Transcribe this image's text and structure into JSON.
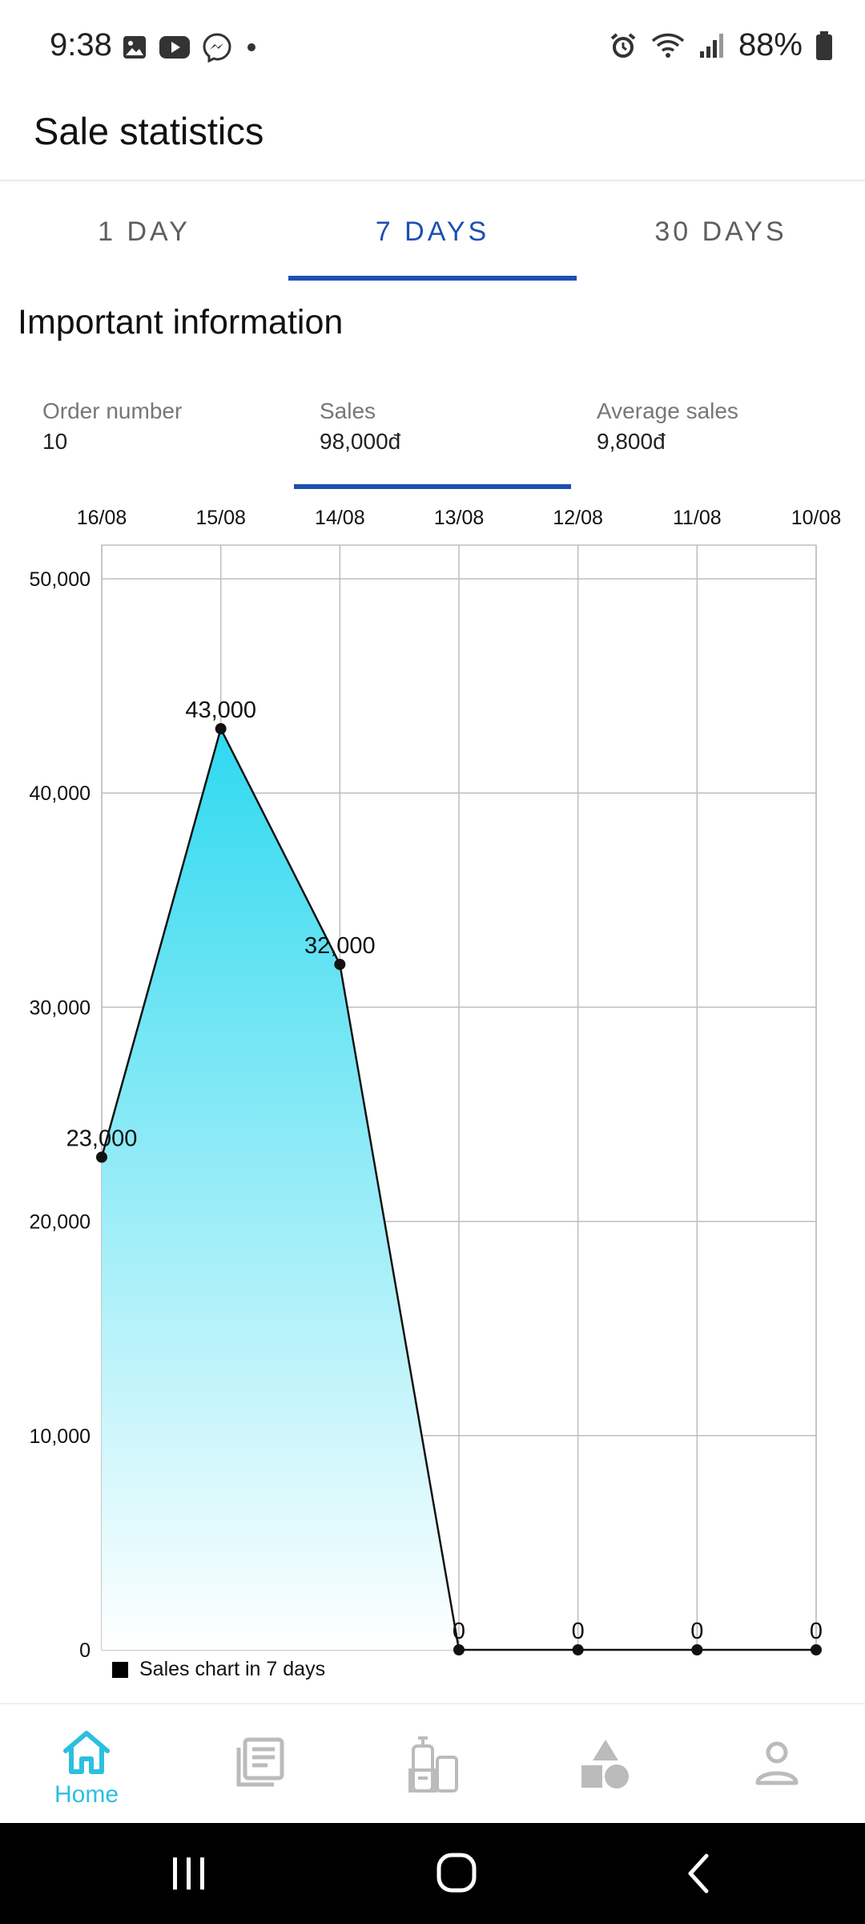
{
  "status_bar": {
    "time": "9:38",
    "battery": "88%",
    "icons": [
      "gallery-icon",
      "youtube-icon",
      "messenger-icon",
      "dot-icon",
      "alarm-icon",
      "wifi-icon",
      "signal-icon",
      "battery-icon"
    ]
  },
  "header": {
    "title": "Sale statistics"
  },
  "period_tabs": [
    {
      "label": "1 DAY",
      "active": false
    },
    {
      "label": "7 DAYS",
      "active": true
    },
    {
      "label": "30 DAYS",
      "active": false
    }
  ],
  "section_title": "Important information",
  "info_tabs": [
    {
      "label": "Order number",
      "value": "10",
      "active": false
    },
    {
      "label": "Sales",
      "value": "98,000đ",
      "active": true
    },
    {
      "label": "Average sales",
      "value": "9,800đ",
      "active": false
    }
  ],
  "colors": {
    "accent": "#1e4fb1",
    "chart_fill_top": "#2fd9ef",
    "nav_active": "#2bbfe0"
  },
  "chart_data": {
    "type": "area",
    "categories": [
      "16/08",
      "15/08",
      "14/08",
      "13/08",
      "12/08",
      "11/08",
      "10/08"
    ],
    "values": [
      23000,
      43000,
      32000,
      0,
      0,
      0,
      0
    ],
    "data_labels": [
      "23,000",
      "43,000",
      "32,000",
      "0",
      "0",
      "0",
      "0"
    ],
    "y_ticks": [
      0,
      10000,
      20000,
      30000,
      40000,
      50000
    ],
    "y_tick_labels": [
      "0",
      "10,000",
      "20,000",
      "30,000",
      "40,000",
      "50,000"
    ],
    "ylim": [
      0,
      50000
    ],
    "x_axis_position": "top",
    "grid": true,
    "legend": {
      "label": "Sales chart in 7 days",
      "position": "bottom-left"
    }
  },
  "bottom_nav": {
    "items": [
      {
        "icon": "home-icon",
        "label": "Home",
        "active": true
      },
      {
        "icon": "orders-icon",
        "label": "",
        "active": false
      },
      {
        "icon": "products-icon",
        "label": "",
        "active": false
      },
      {
        "icon": "categories-icon",
        "label": "",
        "active": false
      },
      {
        "icon": "profile-icon",
        "label": "",
        "active": false
      }
    ]
  },
  "system_nav": [
    "recent-apps-icon",
    "home-button-icon",
    "back-icon"
  ]
}
